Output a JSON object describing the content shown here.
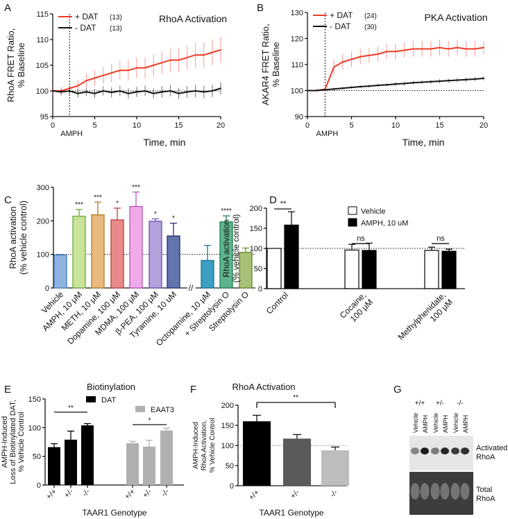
{
  "chart_data": [
    {
      "panel": "A",
      "type": "line",
      "title": "RhoA Activation",
      "ylabel": "RhoA FRET Ratio, % Baseline",
      "xlabel": "Time, min",
      "xlim": [
        0,
        20
      ],
      "ylim": [
        95,
        115
      ],
      "xticks": [
        "0",
        "5",
        "10",
        "15",
        "20"
      ],
      "yticks": [
        "95",
        "100",
        "105",
        "110",
        "115"
      ],
      "annotation": "AMPH",
      "baseline": 100,
      "x": [
        0,
        1,
        2,
        3,
        4,
        5,
        6,
        7,
        8,
        9,
        10,
        11,
        12,
        13,
        14,
        15,
        16,
        17,
        18,
        19,
        20
      ],
      "series": [
        {
          "name": "+ DAT",
          "n": "(13)",
          "color": "#f03a26",
          "values": [
            100,
            100,
            100.5,
            101,
            102,
            102.5,
            103,
            103.5,
            104,
            104,
            104.5,
            104.5,
            105,
            105.5,
            106,
            106,
            106.5,
            107,
            107,
            107.5,
            108
          ],
          "err": [
            0.8,
            0.8,
            1,
            1.2,
            1.4,
            1.5,
            1.6,
            1.8,
            1.8,
            2,
            2,
            2,
            2.2,
            2.2,
            2.2,
            2.3,
            2.3,
            2.4,
            2.4,
            2.5,
            2.5
          ]
        },
        {
          "name": "- DAT",
          "n": "(13)",
          "color": "#111111",
          "values": [
            100,
            99.8,
            100,
            99.5,
            99.8,
            99.5,
            100,
            99.7,
            100,
            99.5,
            99.8,
            100,
            99.5,
            99.8,
            100,
            99.5,
            99.8,
            100,
            99.8,
            100,
            100.5
          ],
          "err": [
            0.6,
            0.6,
            0.7,
            0.8,
            0.8,
            0.9,
            0.9,
            1,
            1,
            1,
            1,
            1,
            1,
            1.1,
            1.1,
            1.1,
            1.1,
            1.2,
            1.2,
            1.2,
            1.2
          ]
        }
      ]
    },
    {
      "panel": "B",
      "type": "line",
      "title": "PKA Activation",
      "ylabel": "AKAR4 FRET Ratio, % Baseline",
      "xlabel": "Time, min",
      "xlim": [
        0,
        20
      ],
      "ylim": [
        90,
        130
      ],
      "xticks": [
        "0",
        "5",
        "10",
        "15",
        "20"
      ],
      "yticks": [
        "90",
        "100",
        "110",
        "120",
        "130"
      ],
      "annotation": "AMPH",
      "baseline": 100,
      "x": [
        0,
        1,
        2,
        3,
        4,
        5,
        6,
        7,
        8,
        9,
        10,
        11,
        12,
        13,
        14,
        15,
        16,
        17,
        18,
        19,
        20
      ],
      "series": [
        {
          "name": "+ DAT",
          "n": "(24)",
          "color": "#f03a26",
          "values": [
            100,
            100,
            100.5,
            109,
            111,
            112,
            113,
            113.5,
            114,
            115,
            115,
            115.5,
            116,
            116,
            116,
            116.5,
            116,
            116.5,
            116,
            116,
            116.5
          ],
          "err": [
            0.5,
            0.5,
            0.8,
            3,
            3,
            3,
            3,
            3,
            3,
            3,
            3,
            3,
            3,
            3,
            3,
            3,
            3,
            3,
            3,
            3,
            2.5
          ]
        },
        {
          "name": "- DAT",
          "n": "(30)",
          "color": "#111111",
          "values": [
            100,
            100,
            100.3,
            100.6,
            100.9,
            101.2,
            101.5,
            101.7,
            102,
            102.2,
            102.5,
            102.7,
            103,
            103.2,
            103.4,
            103.6,
            103.8,
            104,
            104.2,
            104.4,
            104.7
          ],
          "err": [
            0.3,
            0.3,
            0.4,
            0.5,
            0.5,
            0.5,
            0.6,
            0.6,
            0.6,
            0.6,
            0.7,
            0.7,
            0.7,
            0.7,
            0.7,
            0.8,
            0.8,
            0.8,
            0.8,
            0.8,
            0.8
          ]
        }
      ]
    },
    {
      "panel": "C",
      "type": "bar",
      "ylabel": "RhoA activation",
      "ylabel2": "(% vehicle control)",
      "ylim": [
        0,
        300
      ],
      "yticks": [
        "0",
        "100",
        "200",
        "300"
      ],
      "baseline": 100,
      "break_mark": "//",
      "categories": [
        "Vehicle",
        "AMPH, 10 μM",
        "METH, 10 μM",
        "Dopamine, 100 μM",
        "MDMA, 100 μM",
        "β-PEA, 100 μM",
        "Tyramine, 10 uM",
        "Octopamine, 10 μM",
        "+ Streptolysin O",
        "Streptolysin O"
      ],
      "values": [
        98,
        214,
        218,
        203,
        243,
        199,
        155,
        82,
        197,
        106
      ],
      "err": [
        2,
        20,
        38,
        35,
        43,
        7,
        38,
        45,
        18,
        13
      ],
      "sig": [
        "",
        "***",
        "***",
        "*",
        "***",
        "*",
        "*",
        "",
        "****",
        ""
      ],
      "fill": [
        "#8fb3e0",
        "#c9e39a",
        "#e9b97f",
        "#e88a8a",
        "#efaaea",
        "#b3a1dc",
        "#6474ad",
        "#3a9fc0",
        "#5fb48d",
        "#a9bf78"
      ],
      "stroke": [
        "#4b7fc0",
        "#6aaa3a",
        "#b47a20",
        "#c03a3a",
        "#c050c0",
        "#7050b0",
        "#1e2e78",
        "#1e6f8e",
        "#1e7f50",
        "#5f8a1e"
      ]
    },
    {
      "panel": "D",
      "type": "bar",
      "ylabel": "RhoA activation",
      "ylabel2": "(% vehicle control)",
      "ylim": [
        0,
        200
      ],
      "yticks": [
        "0",
        "50",
        "100",
        "150",
        "200"
      ],
      "baseline": 100,
      "categories": [
        "Control",
        "Cocaine,\n100 μM",
        "Methylphenidate,\n100 μM"
      ],
      "series": [
        {
          "name": "Vehicle",
          "color": "#ffffff",
          "values": [
            100,
            96,
            95
          ],
          "err": [
            0,
            14,
            8
          ]
        },
        {
          "name": "AMPH, 10 uM",
          "color": "#000000",
          "values": [
            158,
            95,
            93
          ],
          "err": [
            33,
            18,
            5
          ]
        }
      ],
      "sig": [
        "**",
        "ns",
        "ns"
      ]
    },
    {
      "panel": "E",
      "type": "bar",
      "title": "Biotinylation",
      "ylabel": "AMPH-Induced",
      "ylabel2": "Loss of Biotinylated DAT,",
      "ylabel3": "% Vehicle Control",
      "xlabel": "TAAR1 Genotype",
      "ylim": [
        0,
        150
      ],
      "yticks": [
        "0",
        "50",
        "100",
        "150"
      ],
      "categories": [
        "+/+",
        "+/-",
        "-/-"
      ],
      "series": [
        {
          "name": "DAT",
          "color": "#000000",
          "values": [
            66,
            79,
            104
          ],
          "err": [
            6,
            15,
            3
          ],
          "sig": "**"
        },
        {
          "name": "EAAT3",
          "color": "#b0b0b0",
          "values": [
            73,
            67,
            95
          ],
          "err": [
            3,
            11,
            4
          ],
          "sig": "*"
        }
      ]
    },
    {
      "panel": "F",
      "type": "bar",
      "title": "RhoA Activation",
      "ylabel": "AMPH-Induced",
      "ylabel2": "RhoA Activation,",
      "ylabel3": "% Vehicle Control",
      "xlabel": "TAAR1 Genotype",
      "ylim": [
        0,
        200
      ],
      "yticks": [
        "0",
        "50",
        "100",
        "150",
        "200"
      ],
      "baseline": 100,
      "categories": [
        "+/+",
        "+/-",
        "-/-"
      ],
      "values": [
        160,
        117,
        88
      ],
      "err": [
        15,
        10,
        8
      ],
      "fill": [
        "#000000",
        "#5a5a5a",
        "#bdbdbd"
      ],
      "sig": "**"
    },
    {
      "panel": "G",
      "type": "blot",
      "genotypes": [
        "+/+",
        "+/-",
        "-/-"
      ],
      "lanes": [
        "Vehicle",
        "AMPH"
      ],
      "bands": [
        "Activated RhoA",
        "Total RhoA"
      ]
    }
  ],
  "panel_labels": [
    "A",
    "B",
    "C",
    "D",
    "E",
    "F",
    "G"
  ]
}
